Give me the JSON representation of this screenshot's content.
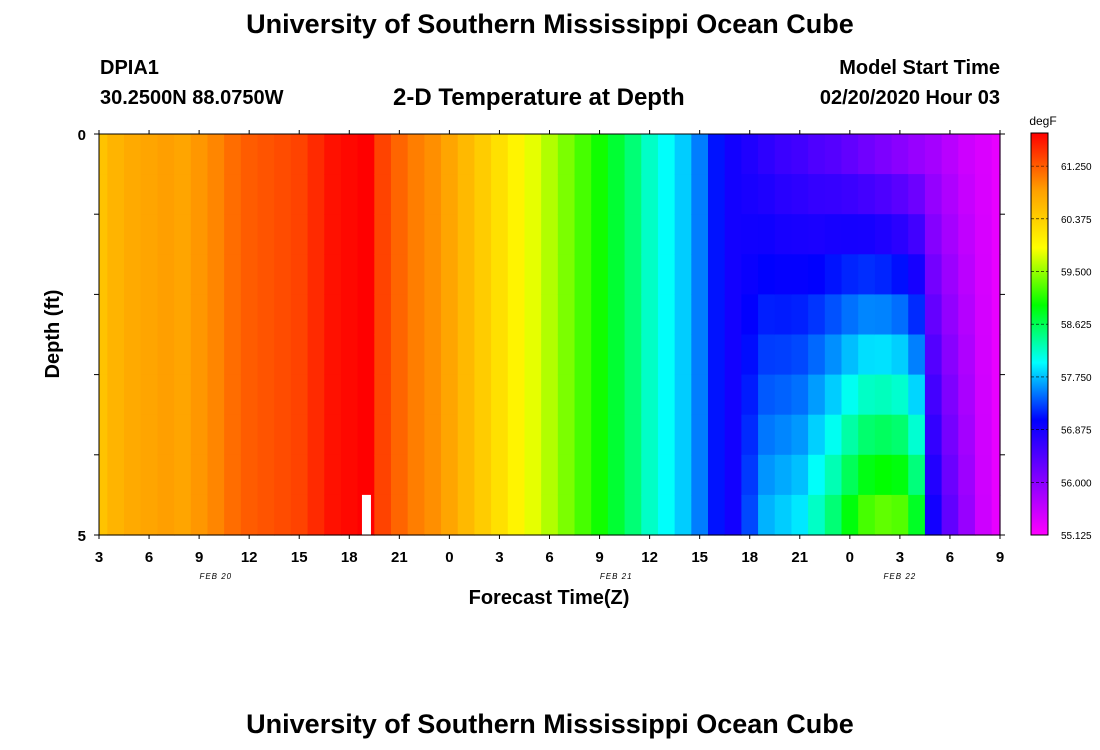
{
  "header": {
    "title": "University of Southern Mississippi Ocean Cube",
    "station_id": "DPIA1",
    "station_coords": "30.2500N 88.0750W",
    "chart_title": "2-D Temperature at Depth",
    "model_start_label": "Model Start Time",
    "model_start_value": "02/20/2020 Hour 03"
  },
  "footer": {
    "title": "University of Southern Mississippi Ocean Cube"
  },
  "chart_data": {
    "type": "heatmap",
    "title": "2-D Temperature at Depth",
    "xlabel": "Forecast Time(Z)",
    "ylabel": "Depth (ft)",
    "x_tick_labels": [
      "3",
      "6",
      "9",
      "12",
      "15",
      "18",
      "21",
      "0",
      "3",
      "6",
      "9",
      "12",
      "15",
      "18",
      "21",
      "0",
      "3",
      "6",
      "9"
    ],
    "date_labels": [
      {
        "label": "FEB 20",
        "at_hour": 10
      },
      {
        "label": "FEB 21",
        "at_hour": 34
      },
      {
        "label": "FEB 22",
        "at_hour": 51
      }
    ],
    "x_range_hours": [
      3,
      57
    ],
    "y_tick_labels": [
      "0",
      "",
      "",
      "",
      "",
      "5"
    ],
    "ylim": [
      0,
      5
    ],
    "y_reversed": true,
    "colorbar": {
      "unit": "degF",
      "min": 55.125,
      "max": 61.8,
      "tick_labels": [
        "61.250",
        "60.375",
        "59.500",
        "58.625",
        "57.750",
        "56.875",
        "56.000",
        "55.125"
      ],
      "tick_values": [
        61.25,
        60.375,
        59.5,
        58.625,
        57.75,
        56.875,
        56.0,
        55.125
      ]
    },
    "depth_levels_ft": [
      0.25,
      0.75,
      1.25,
      1.75,
      2.25,
      2.75,
      3.25,
      3.75,
      4.25,
      4.75
    ],
    "profile_times_hours": [
      3,
      4,
      5,
      6,
      7,
      8,
      9,
      10,
      11,
      12,
      13,
      14,
      15,
      16,
      17,
      18,
      19,
      20,
      21,
      22,
      23,
      24,
      25,
      26,
      27,
      28,
      29,
      30,
      31,
      32,
      33,
      34,
      35,
      36,
      37,
      38,
      39,
      40,
      41,
      42,
      43,
      44,
      45,
      46,
      47,
      48,
      49,
      50,
      51,
      52,
      53,
      54,
      55,
      56,
      57
    ],
    "surface_temperature_degF": [
      60.5,
      60.65,
      60.75,
      60.8,
      60.85,
      60.8,
      60.9,
      61.0,
      61.15,
      61.25,
      61.3,
      61.35,
      61.4,
      61.55,
      61.7,
      61.75,
      61.85,
      61.4,
      61.2,
      61.05,
      60.95,
      60.8,
      60.6,
      60.4,
      60.2,
      60.0,
      59.8,
      59.6,
      59.4,
      59.2,
      59.0,
      58.75,
      58.5,
      58.2,
      58.0,
      57.8,
      57.5,
      57.1,
      56.9,
      56.8,
      56.7,
      56.6,
      56.55,
      56.45,
      56.4,
      56.3,
      56.2,
      56.1,
      56.0,
      55.9,
      55.8,
      55.65,
      55.5,
      55.4,
      55.3
    ],
    "bottom_temperature_degF": [
      60.5,
      60.65,
      60.75,
      60.8,
      60.85,
      60.8,
      60.9,
      61.0,
      61.15,
      61.25,
      61.3,
      61.35,
      61.4,
      61.55,
      61.7,
      61.75,
      61.85,
      61.4,
      61.2,
      61.05,
      60.95,
      60.8,
      60.6,
      60.4,
      60.2,
      60.0,
      59.8,
      59.6,
      59.4,
      59.2,
      59.0,
      58.75,
      58.5,
      58.2,
      58.0,
      57.8,
      57.5,
      57.1,
      56.9,
      57.3,
      57.7,
      57.8,
      57.9,
      58.2,
      58.5,
      58.9,
      59.2,
      59.3,
      59.25,
      58.8,
      56.9,
      56.3,
      55.9,
      55.5,
      55.3
    ],
    "deep_anomaly_start_hour": 41,
    "deep_anomaly_end_hour": 51,
    "missing_data": {
      "hour": 19,
      "depth_ft_from": 4.5,
      "depth_ft_to": 5.0
    }
  },
  "colors": {
    "background": "#ffffff",
    "missing_data": "#ffffff",
    "colormap": [
      "#ff00ff",
      "#8000ff",
      "#0000ff",
      "#00ffff",
      "#00ff00",
      "#ffff00",
      "#ffa000",
      "#ff0000"
    ]
  }
}
